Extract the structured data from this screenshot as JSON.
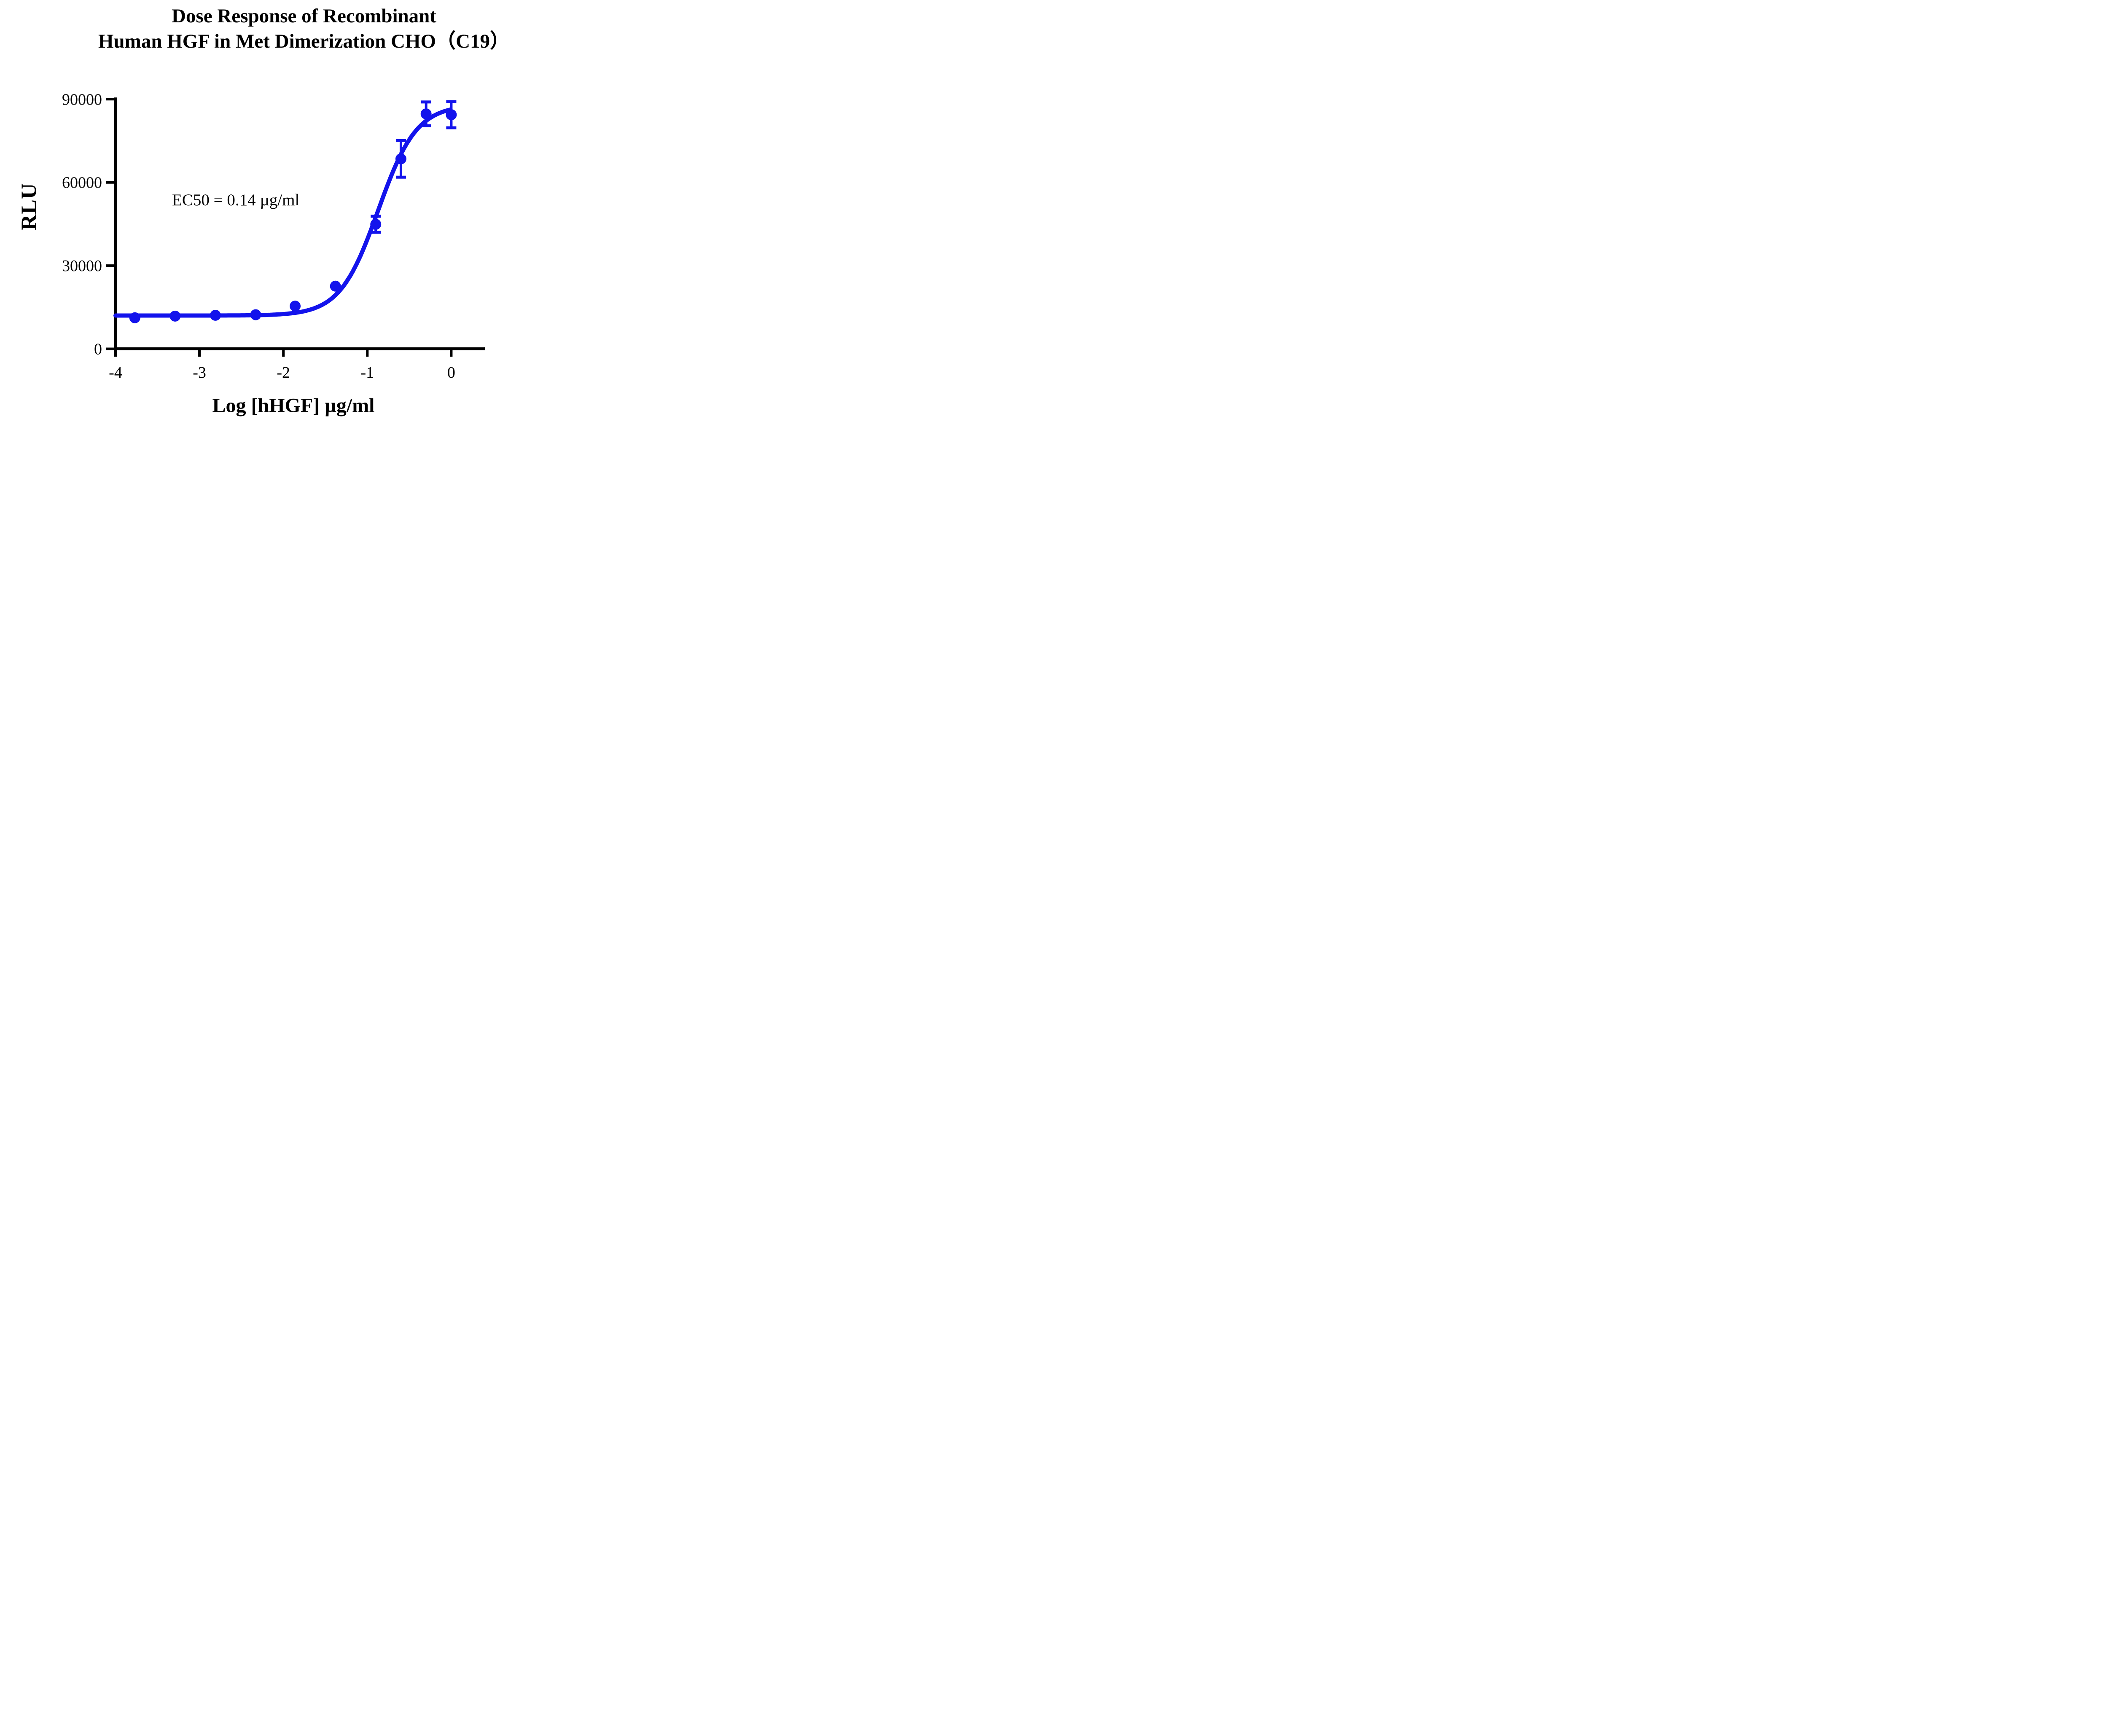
{
  "title": {
    "line1": "Dose Response of Recombinant",
    "line2": "Human HGF in Met Dimerization CHO（C19）"
  },
  "annotation": {
    "ec50_label": "EC50 = 0.14 µg/ml"
  },
  "colors": {
    "curve": "#1313ec",
    "axis": "#000000",
    "background": "#ffffff"
  },
  "chart_data": {
    "type": "scatter",
    "title": "Dose Response of Recombinant Human HGF in Met Dimerization CHO（C19）",
    "xlabel": "Log [hHGF] µg/ml",
    "ylabel": "RLU",
    "x_ticks": [
      -4,
      -3,
      -2,
      -1,
      0
    ],
    "y_ticks": [
      0,
      30000,
      60000,
      90000
    ],
    "xlim": [
      -4,
      0.35
    ],
    "ylim": [
      0,
      90000
    ],
    "grid": false,
    "legend": "none",
    "series": [
      {
        "name": "hHGF",
        "color": "#1313ec",
        "marker": "circle",
        "x": [
          -3.77,
          -3.29,
          -2.81,
          -2.33,
          -1.86,
          -1.38,
          -0.9,
          -0.6,
          -0.3,
          0.0
        ],
        "y": [
          11200,
          11800,
          12100,
          12300,
          15400,
          22600,
          44900,
          68500,
          84700,
          84400
        ],
        "y_err": [
          0,
          0,
          0,
          0,
          0,
          0,
          2900,
          6600,
          4300,
          4700
        ]
      }
    ],
    "curve_fit": {
      "model": "4PL",
      "bottom": 12000,
      "top": 88000,
      "log_ec50": -0.87,
      "hill": 1.9,
      "x_start": -4,
      "x_end": -0.02
    },
    "ec50_annotation": "EC50 = 0.14 µg/ml"
  }
}
